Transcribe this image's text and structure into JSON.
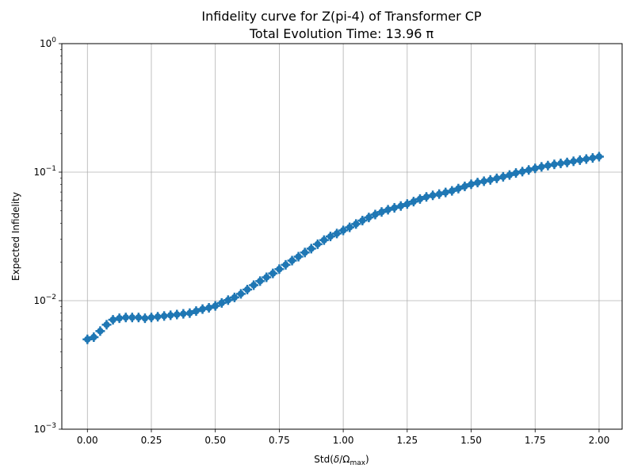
{
  "chart_data": {
    "type": "scatter",
    "title": "Infidelity curve for Z(pi-4) of Transformer CP",
    "subtitle": "Total Evolution Time: 13.96 π",
    "xlabel": {
      "base": "Std(",
      "delta": "δ",
      "slash": "/Ω",
      "sub": "max",
      "close": ")"
    },
    "ylabel": "Expected Infidelity",
    "xlim": [
      -0.1,
      2.09
    ],
    "ylim": [
      0.001,
      1
    ],
    "yscale": "log",
    "grid": true,
    "marker": "+",
    "x_ticks": [
      {
        "value": 0.0,
        "label": "0.00"
      },
      {
        "value": 0.25,
        "label": "0.25"
      },
      {
        "value": 0.5,
        "label": "0.50"
      },
      {
        "value": 0.75,
        "label": "0.75"
      },
      {
        "value": 1.0,
        "label": "1.00"
      },
      {
        "value": 1.25,
        "label": "1.25"
      },
      {
        "value": 1.5,
        "label": "1.50"
      },
      {
        "value": 1.75,
        "label": "1.75"
      },
      {
        "value": 2.0,
        "label": "2.00"
      }
    ],
    "y_ticks": [
      {
        "value": 0.001,
        "base": "10",
        "exp": "−3"
      },
      {
        "value": 0.01,
        "base": "10",
        "exp": "−2"
      },
      {
        "value": 0.1,
        "base": "10",
        "exp": "−1"
      },
      {
        "value": 1,
        "base": "10",
        "exp": "0"
      }
    ],
    "series": [
      {
        "color": "#1f77b4",
        "points": [
          [
            0.0,
            0.005
          ],
          [
            0.025,
            0.0052
          ],
          [
            0.05,
            0.0058
          ],
          [
            0.075,
            0.0065
          ],
          [
            0.1,
            0.0071
          ],
          [
            0.125,
            0.0073
          ],
          [
            0.15,
            0.0074
          ],
          [
            0.175,
            0.0074
          ],
          [
            0.2,
            0.0074
          ],
          [
            0.225,
            0.0073
          ],
          [
            0.25,
            0.0074
          ],
          [
            0.275,
            0.0075
          ],
          [
            0.3,
            0.0076
          ],
          [
            0.325,
            0.0077
          ],
          [
            0.35,
            0.0078
          ],
          [
            0.375,
            0.0079
          ],
          [
            0.4,
            0.008
          ],
          [
            0.425,
            0.0083
          ],
          [
            0.45,
            0.0086
          ],
          [
            0.475,
            0.0088
          ],
          [
            0.5,
            0.0091
          ],
          [
            0.525,
            0.0096
          ],
          [
            0.55,
            0.0101
          ],
          [
            0.575,
            0.0106
          ],
          [
            0.6,
            0.0113
          ],
          [
            0.625,
            0.0122
          ],
          [
            0.65,
            0.0132
          ],
          [
            0.675,
            0.0142
          ],
          [
            0.7,
            0.0152
          ],
          [
            0.725,
            0.0163
          ],
          [
            0.75,
            0.0176
          ],
          [
            0.775,
            0.019
          ],
          [
            0.8,
            0.0205
          ],
          [
            0.825,
            0.022
          ],
          [
            0.85,
            0.0237
          ],
          [
            0.875,
            0.0254
          ],
          [
            0.9,
            0.0275
          ],
          [
            0.925,
            0.0296
          ],
          [
            0.95,
            0.0316
          ],
          [
            0.975,
            0.0333
          ],
          [
            1.0,
            0.0352
          ],
          [
            1.025,
            0.0372
          ],
          [
            1.05,
            0.0395
          ],
          [
            1.075,
            0.042
          ],
          [
            1.1,
            0.0444
          ],
          [
            1.125,
            0.0468
          ],
          [
            1.15,
            0.049
          ],
          [
            1.175,
            0.051
          ],
          [
            1.2,
            0.0528
          ],
          [
            1.225,
            0.0545
          ],
          [
            1.25,
            0.0565
          ],
          [
            1.275,
            0.059
          ],
          [
            1.3,
            0.0618
          ],
          [
            1.325,
            0.0642
          ],
          [
            1.35,
            0.066
          ],
          [
            1.375,
            0.0675
          ],
          [
            1.4,
            0.0695
          ],
          [
            1.425,
            0.0715
          ],
          [
            1.45,
            0.0745
          ],
          [
            1.475,
            0.0775
          ],
          [
            1.5,
            0.0805
          ],
          [
            1.525,
            0.083
          ],
          [
            1.55,
            0.085
          ],
          [
            1.575,
            0.087
          ],
          [
            1.6,
            0.0895
          ],
          [
            1.625,
            0.092
          ],
          [
            1.65,
            0.095
          ],
          [
            1.675,
            0.0985
          ],
          [
            1.7,
            0.101
          ],
          [
            1.725,
            0.104
          ],
          [
            1.75,
            0.107
          ],
          [
            1.775,
            0.11
          ],
          [
            1.8,
            0.1125
          ],
          [
            1.825,
            0.115
          ],
          [
            1.85,
            0.117
          ],
          [
            1.875,
            0.119
          ],
          [
            1.9,
            0.1215
          ],
          [
            1.925,
            0.124
          ],
          [
            1.95,
            0.1265
          ],
          [
            1.975,
            0.129
          ],
          [
            2.0,
            0.132
          ]
        ]
      }
    ]
  }
}
